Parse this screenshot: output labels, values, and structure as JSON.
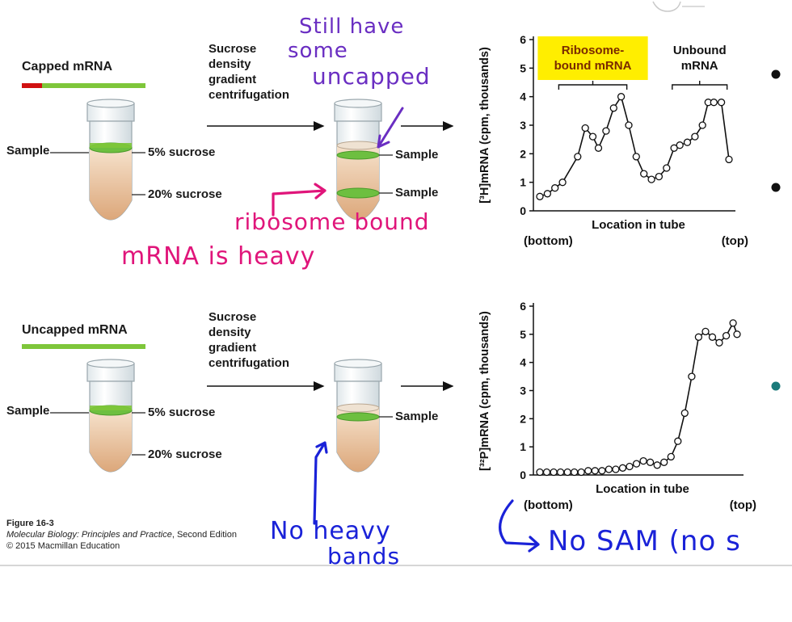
{
  "panel_top": {
    "title": "Capped mRNA",
    "process": [
      "Sucrose",
      "density",
      "gradient",
      "centrifugation"
    ],
    "sample_label": "Sample",
    "layer_top": "5% sucrose",
    "layer_bottom": "20% sucrose",
    "result_upper": "Sample",
    "result_lower": "Sample"
  },
  "panel_bottom": {
    "title": "Uncapped mRNA",
    "process": [
      "Sucrose",
      "density",
      "gradient",
      "centrifugation"
    ],
    "sample_label": "Sample",
    "layer_top": "5% sucrose",
    "layer_bottom": "20% sucrose",
    "result_upper": "Sample"
  },
  "chart_data": [
    {
      "type": "line",
      "ylabel": "[³H]mRNA (cpm, thousands)",
      "xlabel": "Location in tube",
      "x_left": "(bottom)",
      "x_right": "(top)",
      "ylim": [
        0,
        6
      ],
      "yticks": [
        "0",
        "1",
        "2",
        "3",
        "4",
        "5",
        "6"
      ],
      "brackets": [
        {
          "label": [
            "Ribosome-",
            "bound mRNA"
          ],
          "highlight": "#ffee00",
          "x_from": 0.1,
          "x_to": 0.46
        },
        {
          "label": [
            "Unbound",
            "mRNA"
          ],
          "highlight": "",
          "x_from": 0.7,
          "x_to": 0.99
        }
      ],
      "x": [
        0.0,
        0.04,
        0.08,
        0.12,
        0.2,
        0.24,
        0.28,
        0.31,
        0.35,
        0.39,
        0.43,
        0.47,
        0.51,
        0.55,
        0.59,
        0.63,
        0.67,
        0.71,
        0.74,
        0.78,
        0.82,
        0.86,
        0.89,
        0.92,
        0.96,
        1.0
      ],
      "values": [
        0.5,
        0.6,
        0.8,
        1.0,
        1.9,
        2.9,
        2.6,
        2.2,
        2.8,
        3.6,
        4.0,
        3.0,
        1.9,
        1.3,
        1.1,
        1.2,
        1.5,
        2.2,
        2.3,
        2.4,
        2.6,
        3.0,
        3.8,
        3.8,
        3.8,
        1.8
      ]
    },
    {
      "type": "line",
      "ylabel": "[³²P]mRNA (cpm, thousands)",
      "xlabel": "Location in tube",
      "x_left": "(bottom)",
      "x_right": "(top)",
      "ylim": [
        0,
        6
      ],
      "yticks": [
        "0",
        "1",
        "2",
        "3",
        "4",
        "5",
        "6"
      ],
      "x": [
        0.0,
        0.035,
        0.07,
        0.105,
        0.14,
        0.175,
        0.21,
        0.245,
        0.28,
        0.315,
        0.35,
        0.385,
        0.42,
        0.455,
        0.49,
        0.525,
        0.56,
        0.595,
        0.63,
        0.665,
        0.7,
        0.735,
        0.77,
        0.805,
        0.84,
        0.875,
        0.91,
        0.945,
        0.98,
        1.0
      ],
      "values": [
        0.1,
        0.1,
        0.1,
        0.1,
        0.1,
        0.1,
        0.1,
        0.15,
        0.15,
        0.15,
        0.2,
        0.2,
        0.25,
        0.3,
        0.4,
        0.5,
        0.45,
        0.35,
        0.45,
        0.65,
        1.2,
        2.2,
        3.5,
        4.9,
        5.1,
        4.9,
        4.7,
        4.95,
        5.4,
        5.0
      ]
    }
  ],
  "annotations": {
    "still_have": [
      "Still have",
      "some",
      "uncapped"
    ],
    "ribosome": [
      "ribosome bound",
      "mRNA is heavy"
    ],
    "no_heavy": [
      "No heavy",
      "bands"
    ],
    "no_sam": "No SAM (no s"
  },
  "caption": {
    "figure": "Figure 16-3",
    "book": "Molecular Biology: Principles and Practice",
    "edition": ", Second Edition",
    "copyright": "© 2015 Macmillan Education"
  },
  "colors": {
    "cap": "#d01010",
    "rna": "#7ec63a",
    "sucrose": "#e8b98a",
    "band": "#6dbf40",
    "purple_ink": "#6a2ec2",
    "magenta_ink": "#e0157a",
    "blue_ink": "#1a22d8",
    "teal_dot": "#1a7a7a"
  }
}
